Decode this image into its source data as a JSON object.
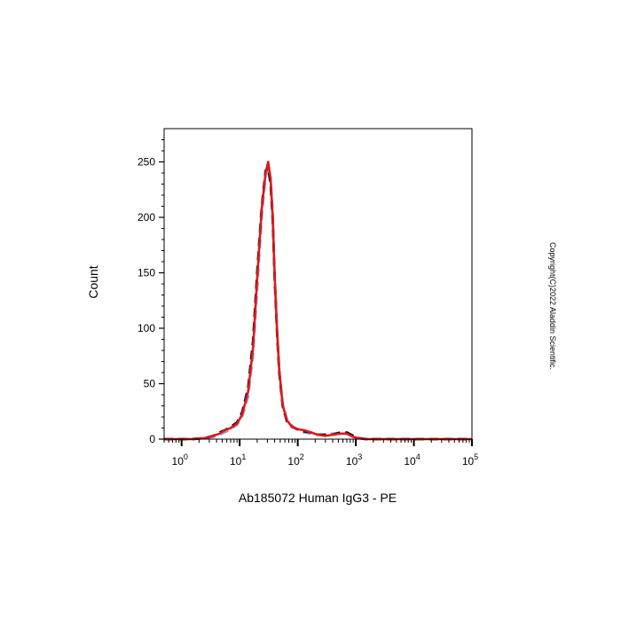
{
  "chart_data": {
    "type": "line",
    "xlabel": "Ab185072 Human IgG3 - PE",
    "ylabel": "Count",
    "x_scale": "log",
    "xlim": [
      0.5,
      100000
    ],
    "ylim": [
      0,
      280
    ],
    "y_ticks": [
      0,
      50,
      100,
      150,
      200,
      250
    ],
    "y_tick_labels": [
      "0",
      "50",
      "100",
      "150",
      "200",
      "250"
    ],
    "x_ticks": [
      {
        "base": "10",
        "exp": "0",
        "value": 1
      },
      {
        "base": "10",
        "exp": "1",
        "value": 10
      },
      {
        "base": "10",
        "exp": "2",
        "value": 100
      },
      {
        "base": "10",
        "exp": "3",
        "value": 1000
      },
      {
        "base": "10",
        "exp": "4",
        "value": 10000
      },
      {
        "base": "10",
        "exp": "5",
        "value": 100000
      }
    ],
    "grid": false,
    "legend": "none",
    "series": [
      {
        "color": "#8fa8e0",
        "style": "dashed",
        "x": [
          0.5,
          1.5,
          2.5,
          3.5,
          4.5,
          5.5,
          7,
          9,
          11,
          14,
          17,
          20,
          24,
          28,
          31,
          34,
          37,
          40,
          44,
          48,
          55,
          65,
          80,
          100,
          130,
          170,
          220,
          300,
          400,
          550,
          700,
          900,
          1100,
          1500,
          3000,
          10000,
          100000
        ],
        "y": [
          0,
          0,
          1,
          2,
          4,
          6,
          9,
          13,
          20,
          38,
          75,
          135,
          200,
          238,
          245,
          235,
          205,
          150,
          100,
          62,
          32,
          18,
          12,
          8,
          6,
          5,
          4,
          4,
          5,
          6,
          5,
          3,
          1,
          0,
          0,
          0,
          0
        ]
      },
      {
        "color": "#000000",
        "style": "dashed",
        "x": [
          0.5,
          1.5,
          2.5,
          3.5,
          4.5,
          5.5,
          7,
          9,
          11,
          14,
          17,
          20,
          24,
          28,
          31,
          34,
          37,
          40,
          44,
          48,
          55,
          65,
          80,
          100,
          130,
          170,
          220,
          300,
          400,
          550,
          700,
          900,
          1100,
          1500,
          3000,
          10000,
          100000
        ],
        "y": [
          0,
          0,
          1,
          3,
          6,
          8,
          11,
          15,
          24,
          46,
          88,
          150,
          210,
          242,
          245,
          230,
          198,
          145,
          96,
          60,
          30,
          16,
          11,
          9,
          7,
          6,
          4,
          4,
          4,
          6,
          6,
          3,
          1,
          0,
          0,
          0,
          0
        ]
      },
      {
        "color": "#dd1a1a",
        "style": "solid",
        "x": [
          0.5,
          1.5,
          2.5,
          3.5,
          4.5,
          5.5,
          7,
          9,
          11,
          14,
          17,
          20,
          24,
          28,
          31,
          34,
          37,
          40,
          44,
          48,
          55,
          65,
          80,
          100,
          130,
          170,
          220,
          300,
          400,
          550,
          700,
          900,
          1100,
          1500,
          3000,
          10000,
          100000
        ],
        "y": [
          0,
          0,
          1,
          3,
          5,
          8,
          10,
          14,
          22,
          43,
          82,
          145,
          208,
          240,
          250,
          235,
          200,
          148,
          98,
          62,
          31,
          17,
          11,
          9,
          8,
          6,
          4,
          3,
          4,
          5,
          5,
          2,
          1,
          0,
          0,
          0,
          0
        ]
      }
    ]
  },
  "copyright": "Copyright(C)2022 Aladdin Scientific."
}
